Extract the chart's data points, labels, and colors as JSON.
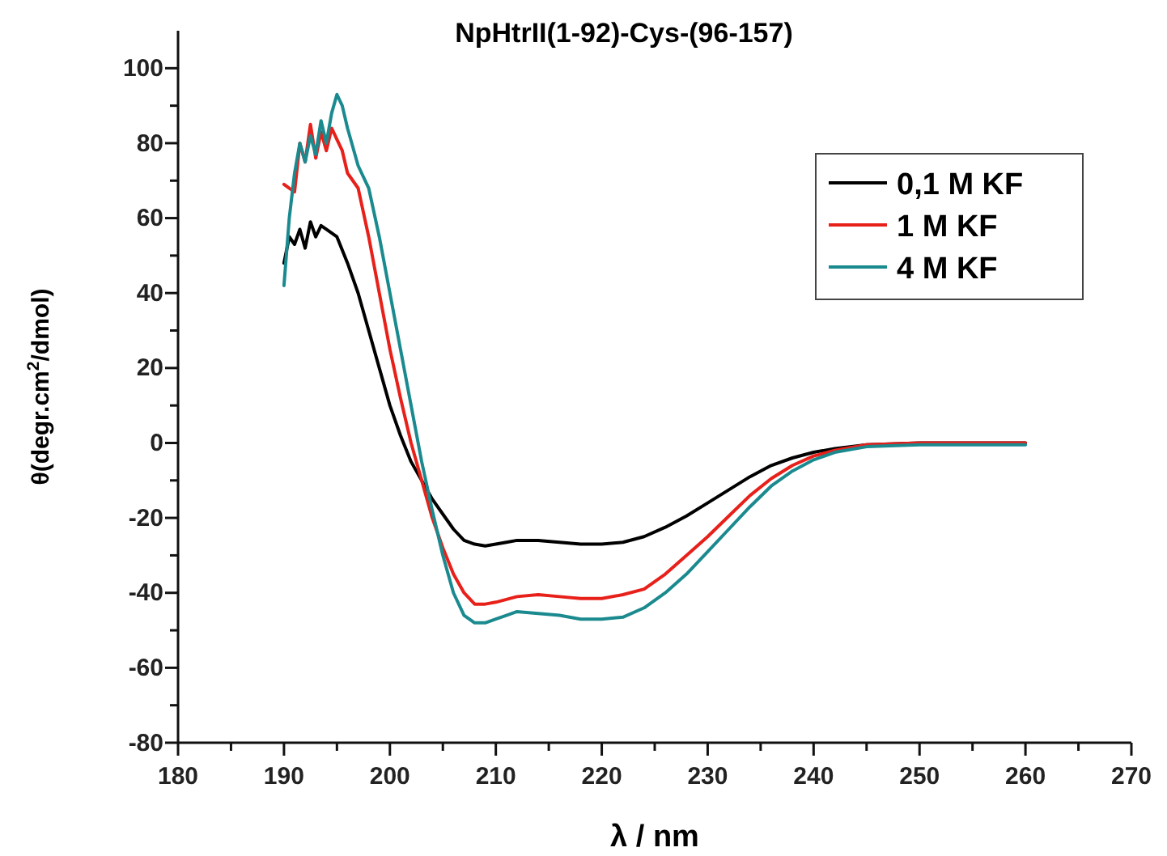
{
  "chart_data": {
    "type": "line",
    "title": "NpHtrII(1-92)-Cys-(96-157)",
    "xlabel": "λ / nm",
    "ylabel": "θ(degr.cm$^{2}$/dmol)",
    "xlim": [
      180,
      270
    ],
    "ylim": [
      -80,
      110
    ],
    "xticks": [
      180,
      {
        "value": 185,
        "label": null
      },
      190,
      {
        "value": 195,
        "label": null
      },
      200,
      {
        "value": 205,
        "label": null
      },
      210,
      {
        "value": 215,
        "label": null
      },
      220,
      {
        "value": 225,
        "label": null
      },
      230,
      {
        "value": 235,
        "label": null
      },
      240,
      {
        "value": 245,
        "label": null
      },
      250,
      {
        "value": 255,
        "label": null
      },
      260,
      {
        "value": 265,
        "label": null
      },
      270
    ],
    "yticks": [
      -80,
      {
        "value": -70,
        "label": null
      },
      -60,
      {
        "value": -50,
        "label": null
      },
      -40,
      {
        "value": -30,
        "label": null
      },
      -20,
      {
        "value": -10,
        "label": null
      },
      0,
      {
        "value": 10,
        "label": null
      },
      20,
      {
        "value": 30,
        "label": null
      },
      40,
      {
        "value": 50,
        "label": null
      },
      60,
      {
        "value": 70,
        "label": null
      },
      80,
      {
        "value": 90,
        "label": null
      },
      100
    ],
    "grid": false,
    "legend": "top right",
    "line_style": "solid",
    "marker": "none",
    "series": [
      {
        "name": "0,1 M KF",
        "color": "#000000",
        "x": [
          190,
          190.5,
          191,
          191.5,
          192,
          192.5,
          193,
          193.5,
          194,
          195,
          196,
          197,
          198,
          199,
          200,
          201,
          202,
          203,
          204,
          205,
          206,
          207,
          208,
          209,
          210,
          211,
          212,
          214,
          216,
          218,
          220,
          222,
          224,
          226,
          228,
          230,
          232,
          234,
          236,
          238,
          240,
          242,
          245,
          250,
          255,
          260
        ],
        "values": [
          48,
          55,
          53,
          57,
          52,
          59,
          55,
          58,
          57,
          55,
          48,
          40,
          30,
          20,
          10,
          2,
          -5,
          -10,
          -15,
          -19,
          -23,
          -26,
          -27,
          -27.5,
          -27,
          -26.5,
          -26,
          -26,
          -26.5,
          -27,
          -27,
          -26.5,
          -25,
          -22.5,
          -19.5,
          -16,
          -12.5,
          -9,
          -6,
          -4,
          -2.5,
          -1.5,
          -0.5,
          0,
          0,
          0
        ]
      },
      {
        "name": "1 M KF",
        "color": "#e8201a",
        "x": [
          190,
          190.5,
          191,
          191.5,
          192,
          192.5,
          193,
          193.5,
          194,
          194.5,
          195,
          195.5,
          196,
          197,
          198,
          199,
          200,
          201,
          202,
          203,
          204,
          205,
          206,
          207,
          208,
          209,
          210,
          212,
          214,
          216,
          218,
          220,
          222,
          224,
          226,
          228,
          230,
          232,
          234,
          236,
          238,
          240,
          242,
          245,
          250,
          255,
          260
        ],
        "values": [
          69,
          68,
          67,
          80,
          75,
          85,
          76,
          83,
          78,
          84,
          81,
          78,
          72,
          68,
          55,
          40,
          25,
          12,
          0,
          -10,
          -20,
          -28,
          -35,
          -40,
          -43,
          -43,
          -42.5,
          -41,
          -40.5,
          -41,
          -41.5,
          -41.5,
          -40.5,
          -39,
          -35,
          -30,
          -25,
          -19.5,
          -14,
          -9.5,
          -6,
          -3.5,
          -2,
          -0.5,
          0,
          0,
          0
        ]
      },
      {
        "name": "4 M KF",
        "color": "#1b8a8f",
        "x": [
          190,
          190.5,
          191,
          191.5,
          192,
          192.5,
          193,
          193.5,
          194,
          194.5,
          195,
          195.5,
          196,
          197,
          198,
          199,
          200,
          201,
          202,
          203,
          204,
          205,
          206,
          207,
          208,
          209,
          210,
          211,
          212,
          214,
          216,
          218,
          220,
          222,
          224,
          226,
          228,
          230,
          232,
          234,
          236,
          238,
          240,
          242,
          245,
          250,
          255,
          260
        ],
        "values": [
          42,
          60,
          72,
          80,
          75,
          82,
          77,
          86,
          80,
          88,
          93,
          90,
          84,
          74,
          68,
          55,
          40,
          25,
          10,
          -5,
          -18,
          -30,
          -40,
          -46,
          -48,
          -48,
          -47,
          -46,
          -45,
          -45.5,
          -46,
          -47,
          -47,
          -46.5,
          -44,
          -40,
          -35,
          -29,
          -23,
          -17,
          -11.5,
          -7.5,
          -4.5,
          -2.5,
          -1,
          -0.5,
          -0.5,
          -0.5
        ]
      }
    ]
  }
}
